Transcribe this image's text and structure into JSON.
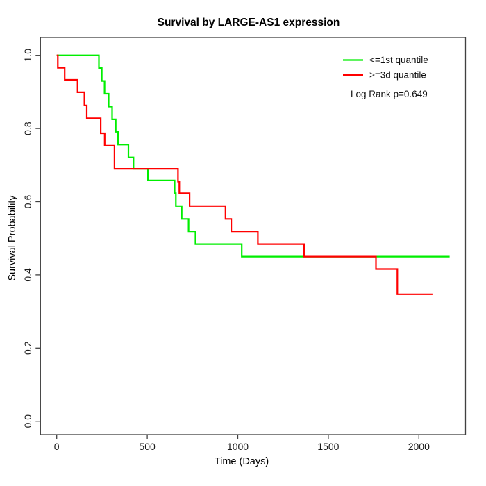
{
  "chart_data": {
    "type": "line",
    "subtype": "kaplan-meier-step",
    "title": "Survival by LARGE-AS1 expression",
    "xlabel": "Time (Days)",
    "ylabel": "Survival Probability",
    "xtick_labels": [
      "0",
      "500",
      "1000",
      "1500",
      "2000"
    ],
    "ytick_labels": [
      "0.0",
      "0.2",
      "0.4",
      "0.6",
      "0.8",
      "1.0"
    ],
    "xlim": [
      0,
      2200
    ],
    "ylim": [
      0.0,
      1.0
    ],
    "grid": "off",
    "legend_position": "top-right-inside",
    "annotation": "Log Rank p=0.649",
    "series": [
      {
        "name": "<=1st quantile",
        "color": "#00ee00",
        "steps": [
          [
            0,
            1.0
          ],
          [
            233,
            0.965
          ],
          [
            249,
            0.93
          ],
          [
            264,
            0.895
          ],
          [
            287,
            0.86
          ],
          [
            306,
            0.825
          ],
          [
            326,
            0.791
          ],
          [
            338,
            0.756
          ],
          [
            396,
            0.721
          ],
          [
            424,
            0.69
          ],
          [
            504,
            0.658
          ],
          [
            651,
            0.623
          ],
          [
            658,
            0.588
          ],
          [
            690,
            0.553
          ],
          [
            728,
            0.519
          ],
          [
            766,
            0.484
          ],
          [
            1022,
            0.45
          ]
        ],
        "end_time": 2170,
        "final_survival": 0.45
      },
      {
        "name": ">=3d quantile",
        "color": "#ff0000",
        "steps": [
          [
            0,
            1.0
          ],
          [
            6,
            0.966
          ],
          [
            44,
            0.933
          ],
          [
            115,
            0.899
          ],
          [
            153,
            0.863
          ],
          [
            166,
            0.828
          ],
          [
            243,
            0.787
          ],
          [
            265,
            0.753
          ],
          [
            319,
            0.69
          ],
          [
            670,
            0.655
          ],
          [
            677,
            0.623
          ],
          [
            734,
            0.588
          ],
          [
            932,
            0.553
          ],
          [
            964,
            0.519
          ],
          [
            1111,
            0.484
          ],
          [
            1366,
            0.45
          ],
          [
            1763,
            0.416
          ],
          [
            1881,
            0.347
          ]
        ],
        "end_time": 2075,
        "final_survival": 0.347
      }
    ]
  }
}
